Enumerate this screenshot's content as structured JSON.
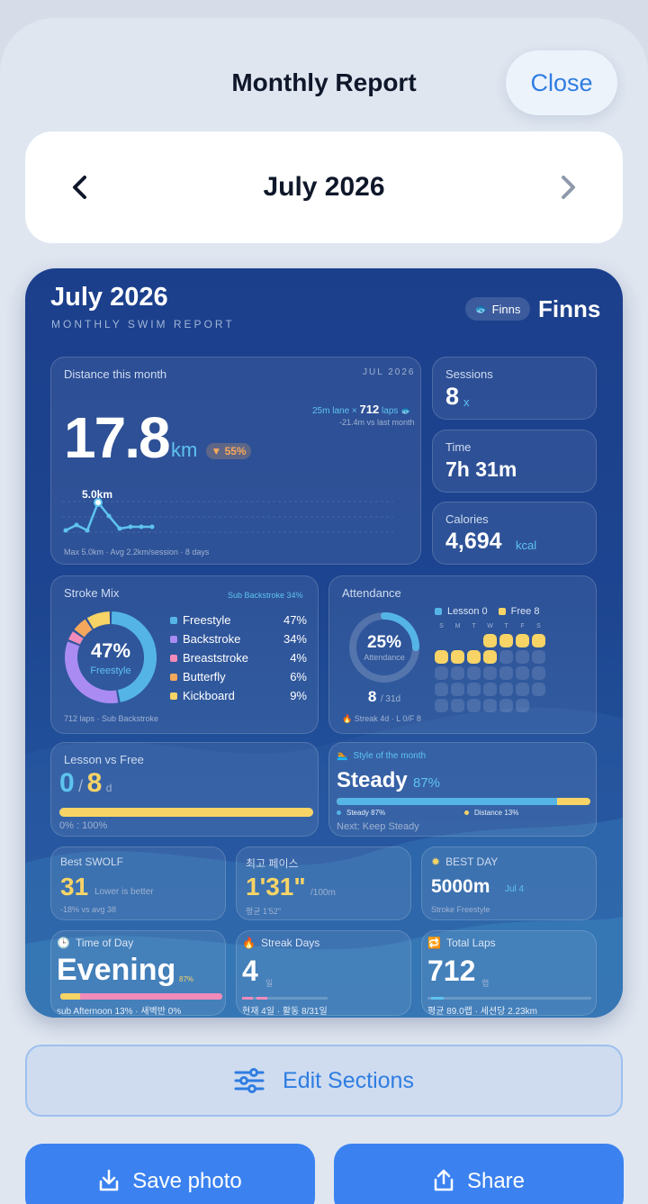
{
  "header": {
    "title": "Monthly Report",
    "close_label": "Close"
  },
  "month_nav": {
    "label": "July 2026",
    "prev_icon": "chevron-left-icon",
    "next_icon": "chevron-right-icon"
  },
  "report": {
    "title": "July 2026",
    "subtitle": "MONTHLY SWIM REPORT",
    "brand_pill": "Finns",
    "brand": "Finns",
    "distance": {
      "label": "Distance this month",
      "date_tag": "JUL 2026",
      "value": "17.8",
      "unit": "km",
      "change": "▼ 55%",
      "lane_prefix": "25m lane ×",
      "laps": "712",
      "laps_unit": "laps",
      "vs_last": "-21.4m vs last month",
      "peak_label": "5.0km",
      "footer": "Max 5.0km · Avg 2.2km/session · 8 days"
    },
    "sessions": {
      "label": "Sessions",
      "value": "8",
      "unit": "x"
    },
    "time": {
      "label": "Time",
      "value": "7h 31m"
    },
    "calories": {
      "label": "Calories",
      "value": "4,694",
      "unit": "kcal"
    },
    "stroke_mix": {
      "label": "Stroke Mix",
      "tag": "Sub Backstroke 34%",
      "center_value": "47%",
      "center_label": "Freestyle",
      "items": [
        {
          "name": "Freestyle",
          "pct": "47%",
          "value": 47,
          "color": "#55b4e6"
        },
        {
          "name": "Backstroke",
          "pct": "34%",
          "value": 34,
          "color": "#a98bf2"
        },
        {
          "name": "Breaststroke",
          "pct": "4%",
          "value": 4,
          "color": "#f28bb9"
        },
        {
          "name": "Butterfly",
          "pct": "6%",
          "value": 6,
          "color": "#f5a85c"
        },
        {
          "name": "Kickboard",
          "pct": "9%",
          "value": 9,
          "color": "#f8d466"
        }
      ],
      "footer": "712 laps · Sub Backstroke"
    },
    "attendance": {
      "label": "Attendance",
      "legend_lesson": "Lesson 0",
      "legend_free": "Free 8",
      "weekdays": [
        "S",
        "M",
        "T",
        "W",
        "T",
        "F",
        "S"
      ],
      "ring_value": "25%",
      "ring_label": "Attendance",
      "ring_fraction": 0.25,
      "days_value": "8",
      "days_total": "/ 31d",
      "streak": "🔥 Streak 4d · L 0/F 8"
    },
    "lesson_vs_free": {
      "label": "Lesson vs Free",
      "lesson": "0",
      "sep": "/",
      "free": "8",
      "unit": "d",
      "footer": "0% : 100%",
      "free_fraction": 1.0
    },
    "style": {
      "label": "Style of the month",
      "value": "Steady",
      "pct": "87%",
      "bar_fraction": 0.87,
      "legend_a": "Steady 87%",
      "legend_b": "Distance 13%",
      "next": "Next: Keep Steady"
    },
    "best_swolf": {
      "label": "Best SWOLF",
      "value": "31",
      "note": "Lower is better",
      "footer": "-18% vs avg 38"
    },
    "best_pace": {
      "label": "최고 페이스",
      "value": "1'31\"",
      "unit": "/100m",
      "footer": "평균 1'52\""
    },
    "best_day": {
      "label": "BEST DAY",
      "icon": "sparkle-icon",
      "value": "5000m",
      "date": "Jul 4",
      "footer": "Stroke Freestyle"
    },
    "time_of_day": {
      "label": "Time of Day",
      "value": "Evening",
      "pct": "87%",
      "footer": "sub Afternoon 13% · 새벽반 0%"
    },
    "streak_days": {
      "label": "Streak Days",
      "value": "4",
      "unit": "일",
      "footer": "현재 4일 · 활동 8/31일"
    },
    "total_laps": {
      "label": "Total Laps",
      "value": "712",
      "unit": "랩",
      "footer": "평균 89.0랩 · 세션당 2.23km"
    }
  },
  "actions": {
    "edit_label": "Edit Sections",
    "save_label": "Save photo",
    "share_label": "Share"
  }
}
